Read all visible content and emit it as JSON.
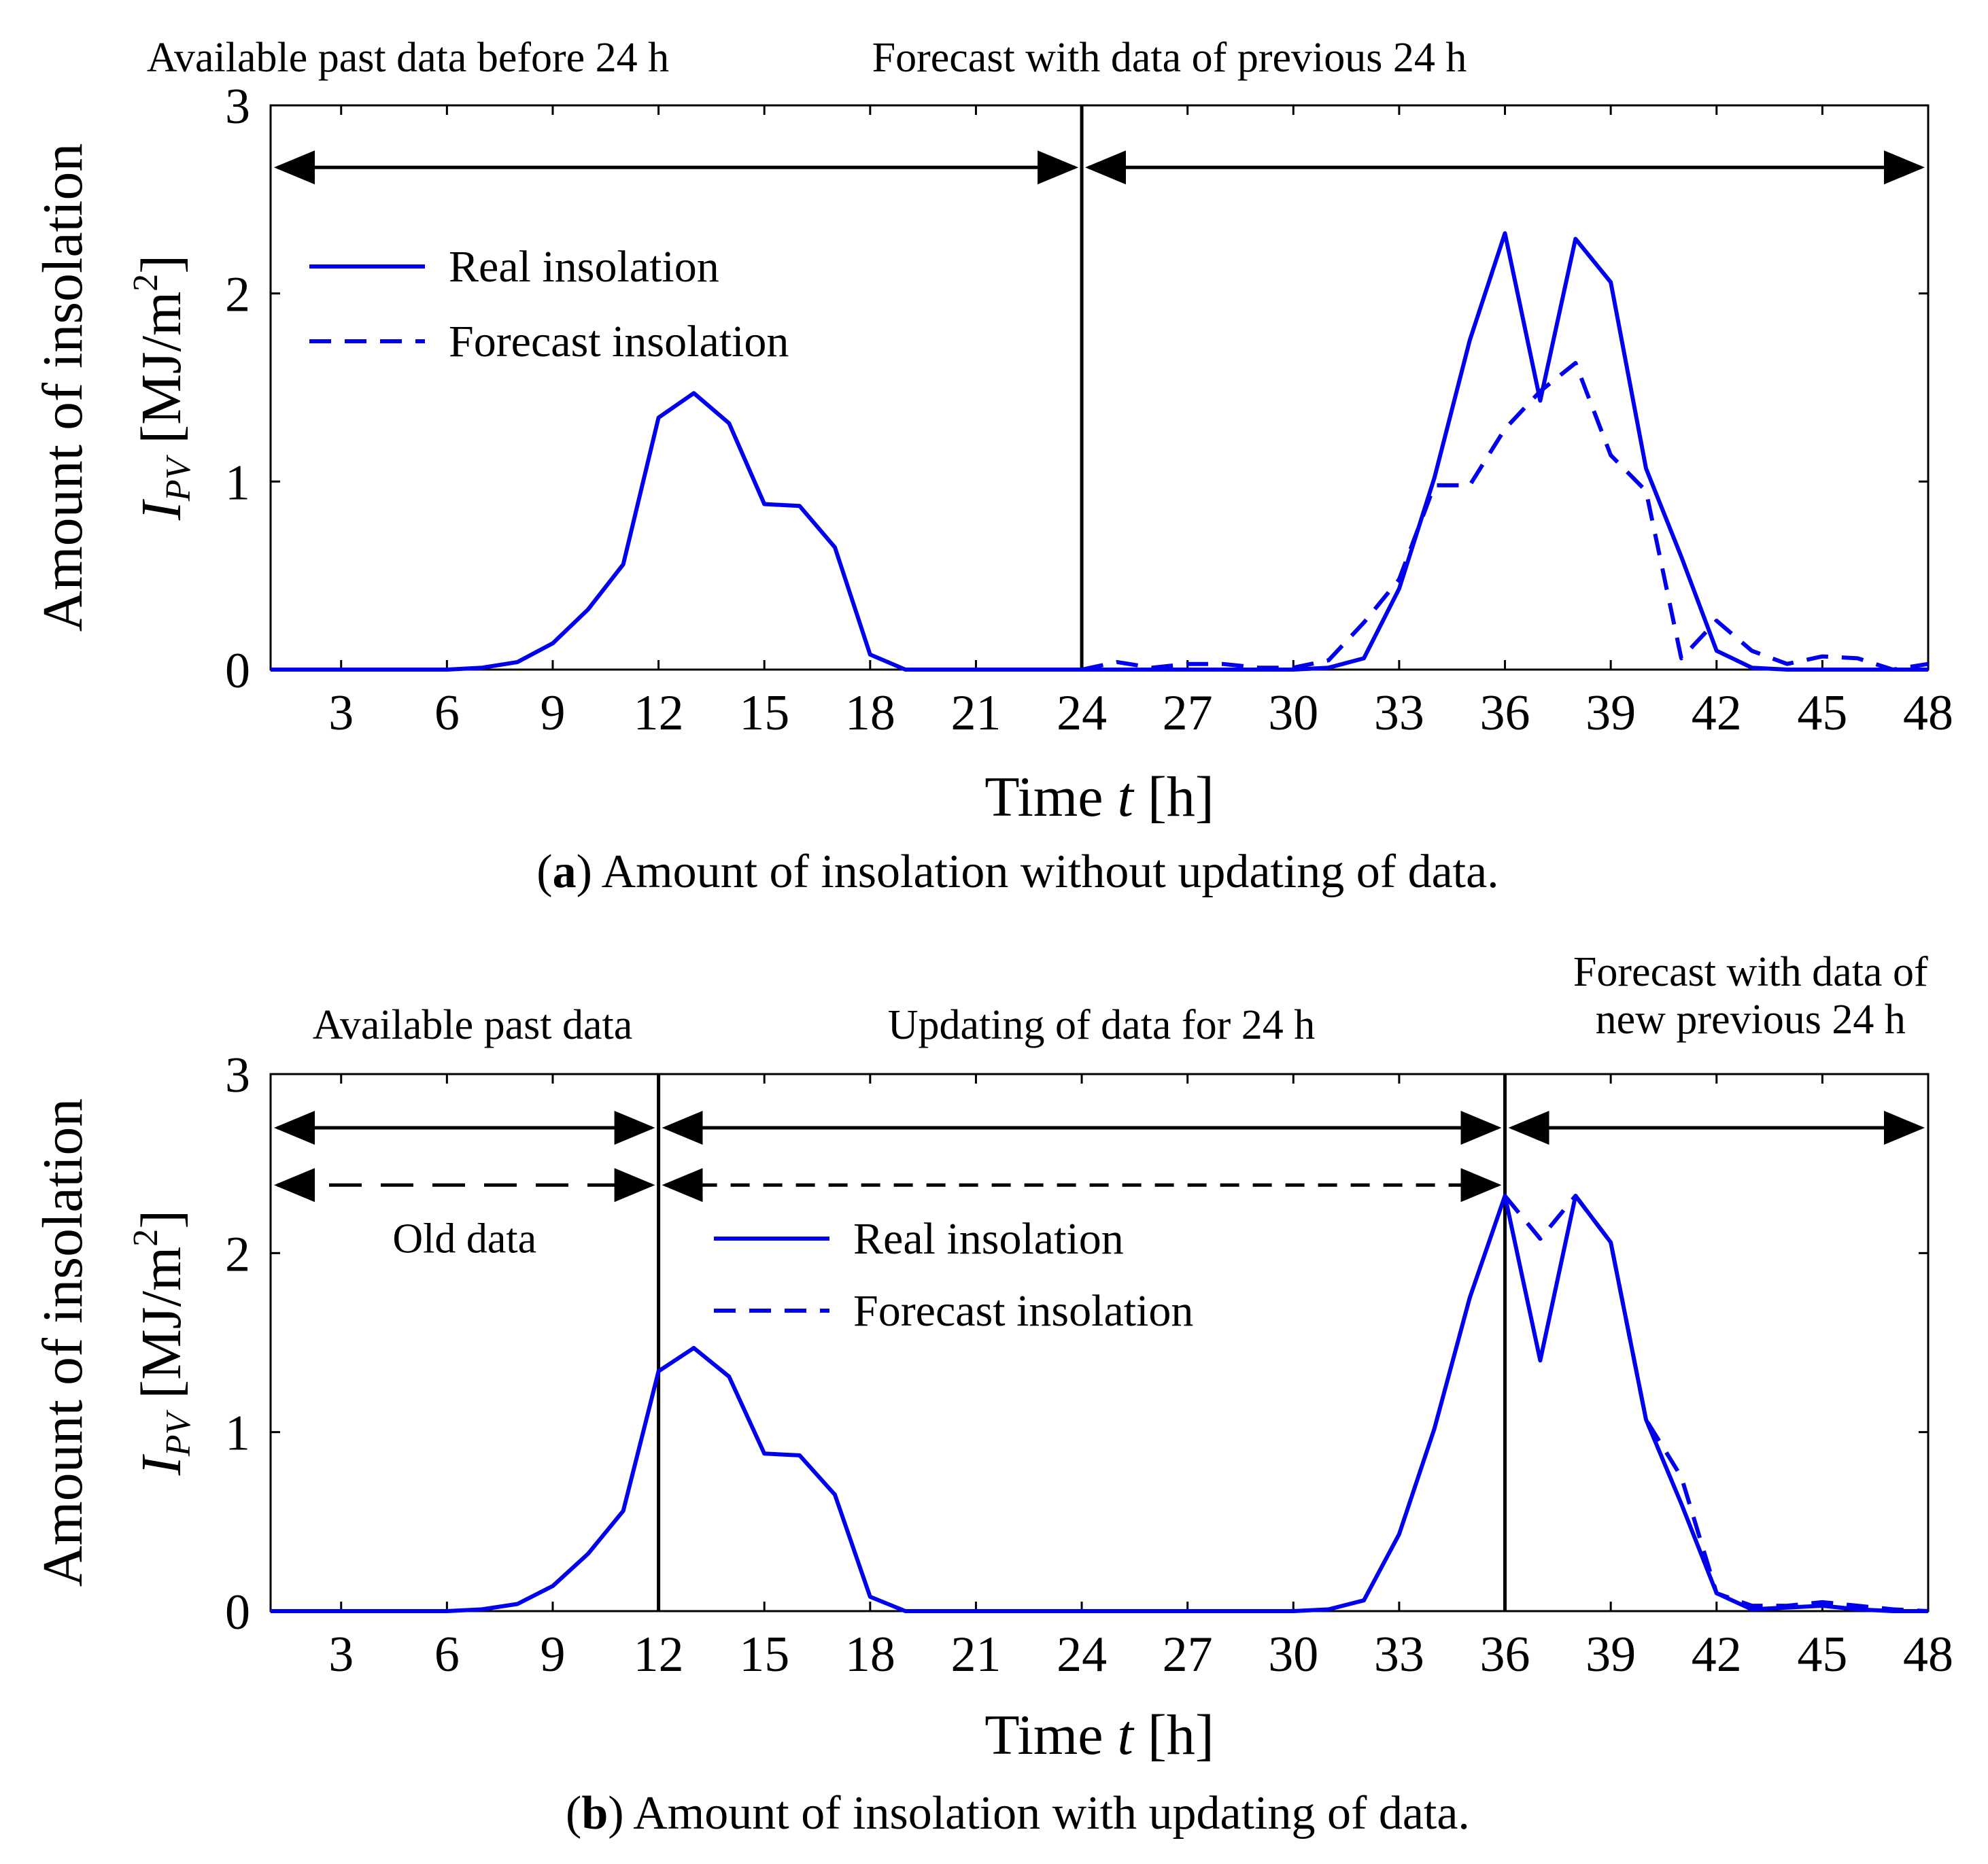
{
  "chart_data": [
    {
      "id": "a",
      "type": "line",
      "caption_label": "a",
      "caption_text": "Amount of insolation without updating of data.",
      "xlabel_pre": "Time ",
      "xlabel_var": "t",
      "xlabel_post": " [h]",
      "ylabel_top": "Amount of insolation",
      "ylabel_sym": "I",
      "ylabel_sub": "PV",
      "ylabel_unit_pre": "[MJ/m",
      "ylabel_unit_sup": "2",
      "ylabel_unit_post": "]",
      "xlim": [
        1,
        48
      ],
      "ylim": [
        0,
        3
      ],
      "xticks": [
        3,
        6,
        9,
        12,
        15,
        18,
        21,
        24,
        27,
        30,
        33,
        36,
        39,
        42,
        45,
        48
      ],
      "yticks": [
        0,
        1,
        2,
        3
      ],
      "series": [
        {
          "name": "Real insolation",
          "style": "solid",
          "color": "#0000ee",
          "x": [
            1,
            2,
            3,
            4,
            5,
            6,
            7,
            8,
            9,
            10,
            11,
            12,
            13,
            14,
            15,
            16,
            17,
            18,
            19,
            20,
            21,
            22,
            23,
            24,
            25,
            26,
            27,
            28,
            29,
            30,
            31,
            32,
            33,
            34,
            35,
            36,
            37,
            38,
            39,
            40,
            41,
            42,
            43,
            44,
            45,
            46,
            47,
            48
          ],
          "values": [
            0,
            0,
            0,
            0,
            0,
            0,
            0.01,
            0.04,
            0.14,
            0.32,
            0.56,
            1.34,
            1.47,
            1.31,
            0.88,
            0.87,
            0.65,
            0.08,
            0,
            0,
            0,
            0,
            0,
            0,
            0,
            0,
            0,
            0,
            0,
            0,
            0.01,
            0.06,
            0.43,
            1.02,
            1.75,
            2.32,
            1.43,
            2.29,
            2.06,
            1.07,
            0.6,
            0.1,
            0.01,
            0,
            0,
            0,
            0,
            0
          ]
        },
        {
          "name": "Forecast insolation",
          "style": "dashed",
          "color": "#0000ee",
          "x": [
            24,
            25,
            26,
            27,
            28,
            29,
            30,
            31,
            32,
            33,
            34,
            35,
            36,
            37,
            38,
            39,
            40,
            41,
            42,
            43,
            44,
            45,
            46,
            47,
            48
          ],
          "values": [
            0,
            0.04,
            0.01,
            0.03,
            0.03,
            0.01,
            0.01,
            0.05,
            0.25,
            0.48,
            0.98,
            0.98,
            1.28,
            1.48,
            1.63,
            1.14,
            0.95,
            0.06,
            0.26,
            0.1,
            0.03,
            0.07,
            0.06,
            0,
            0.03
          ]
        }
      ],
      "vlines": [
        24
      ],
      "range_annotations": [
        {
          "label": "Available past data before 24 h",
          "from": 1,
          "to": 24,
          "style": "solid",
          "y": 2.67
        },
        {
          "label": "Forecast with data of previous 24 h",
          "from": 24,
          "to": 48,
          "style": "solid",
          "y": 2.67
        }
      ],
      "extra_labels": [],
      "legend_position": "upper-left"
    },
    {
      "id": "b",
      "type": "line",
      "caption_label": "b",
      "caption_text": "Amount of insolation with updating of data.",
      "xlabel_pre": "Time ",
      "xlabel_var": "t",
      "xlabel_post": " [h]",
      "ylabel_top": "Amount of insolation",
      "ylabel_sym": "I",
      "ylabel_sub": "PV",
      "ylabel_unit_pre": "[MJ/m",
      "ylabel_unit_sup": "2",
      "ylabel_unit_post": "]",
      "xlim": [
        1,
        48
      ],
      "ylim": [
        0,
        3
      ],
      "xticks": [
        3,
        6,
        9,
        12,
        15,
        18,
        21,
        24,
        27,
        30,
        33,
        36,
        39,
        42,
        45,
        48
      ],
      "yticks": [
        0,
        1,
        2,
        3
      ],
      "series": [
        {
          "name": "Real insolation",
          "style": "solid",
          "color": "#0000ee",
          "x": [
            1,
            2,
            3,
            4,
            5,
            6,
            7,
            8,
            9,
            10,
            11,
            12,
            13,
            14,
            15,
            16,
            17,
            18,
            19,
            20,
            21,
            22,
            23,
            24,
            25,
            26,
            27,
            28,
            29,
            30,
            31,
            32,
            33,
            34,
            35,
            36,
            37,
            38,
            39,
            40,
            41,
            42,
            43,
            44,
            45,
            46,
            47,
            48
          ],
          "values": [
            0,
            0,
            0,
            0,
            0,
            0,
            0.01,
            0.04,
            0.14,
            0.32,
            0.56,
            1.34,
            1.47,
            1.31,
            0.88,
            0.87,
            0.65,
            0.08,
            0,
            0,
            0,
            0,
            0,
            0,
            0,
            0,
            0,
            0,
            0,
            0,
            0.01,
            0.06,
            0.43,
            1.02,
            1.75,
            2.32,
            1.4,
            2.32,
            2.06,
            1.07,
            0.6,
            0.1,
            0.01,
            0.02,
            0.03,
            0.01,
            0,
            0
          ]
        },
        {
          "name": "Forecast insolation",
          "style": "dashed",
          "color": "#0000ee",
          "x": [
            36,
            37,
            38,
            39,
            40,
            41,
            42,
            43,
            44,
            45,
            46,
            47,
            48
          ],
          "values": [
            2.32,
            2.08,
            2.32,
            2.06,
            1.07,
            0.75,
            0.1,
            0.03,
            0.03,
            0.05,
            0.03,
            0.01,
            0
          ]
        }
      ],
      "vlines": [
        12,
        36
      ],
      "range_annotations": [
        {
          "label": "Available past data",
          "from": 1,
          "to": 12,
          "style": "solid",
          "y": 2.7
        },
        {
          "label": "Updating of data for 24 h",
          "from": 12,
          "to": 36,
          "style": "solid",
          "y": 2.7
        },
        {
          "label": "Forecast with data of new previous 24 h",
          "from": 36,
          "to": 48,
          "style": "solid",
          "y": 2.7
        },
        {
          "label": "",
          "from": 1,
          "to": 12,
          "style": "longdash",
          "y": 2.38
        },
        {
          "label": "",
          "from": 12,
          "to": 36,
          "style": "dashed",
          "y": 2.38
        }
      ],
      "extra_labels": [
        {
          "label": "Old data",
          "x": 6.5,
          "y": 2.08
        }
      ],
      "legend_position": "center"
    }
  ]
}
